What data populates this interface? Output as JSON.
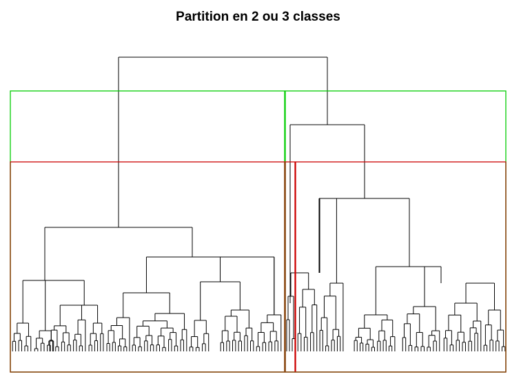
{
  "chart_data": {
    "type": "dendrogram",
    "title": "Partition en 2 ou 3 classes",
    "partition_boxes": [
      {
        "clusters": 2,
        "color": "#00cd00"
      },
      {
        "clusters": 3,
        "color": "#cd0000"
      }
    ],
    "overlap_color": "#8b4513",
    "branch_color": "#000000"
  }
}
